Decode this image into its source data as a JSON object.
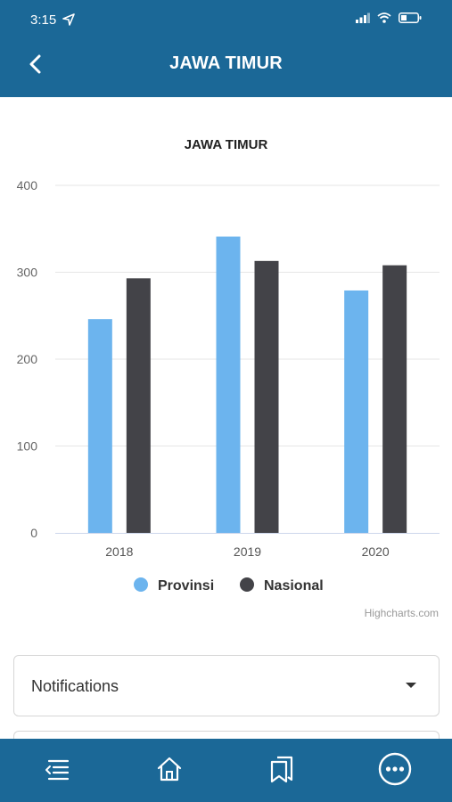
{
  "status": {
    "time": "3:15"
  },
  "header": {
    "title": "JAWA TIMUR"
  },
  "chart_data": {
    "type": "bar",
    "title": "JAWA TIMUR",
    "categories": [
      "2018",
      "2019",
      "2020"
    ],
    "series": [
      {
        "name": "Provinsi",
        "color": "#6cb4ee",
        "values": [
          246,
          341,
          279
        ]
      },
      {
        "name": "Nasional",
        "color": "#434348",
        "values": [
          293,
          313,
          308
        ]
      }
    ],
    "ylim": [
      0,
      400
    ],
    "yticks": [
      "0",
      "100",
      "200",
      "300",
      "400"
    ],
    "grid": true,
    "legend": "bottom-center",
    "credit": "Highcharts.com"
  },
  "notifications": {
    "label": "Notifications"
  },
  "icons": {
    "back": "back-arrow-icon",
    "menu": "menu-list-icon",
    "home": "home-icon",
    "bookmarks": "bookmarks-icon",
    "more": "more-icon"
  }
}
